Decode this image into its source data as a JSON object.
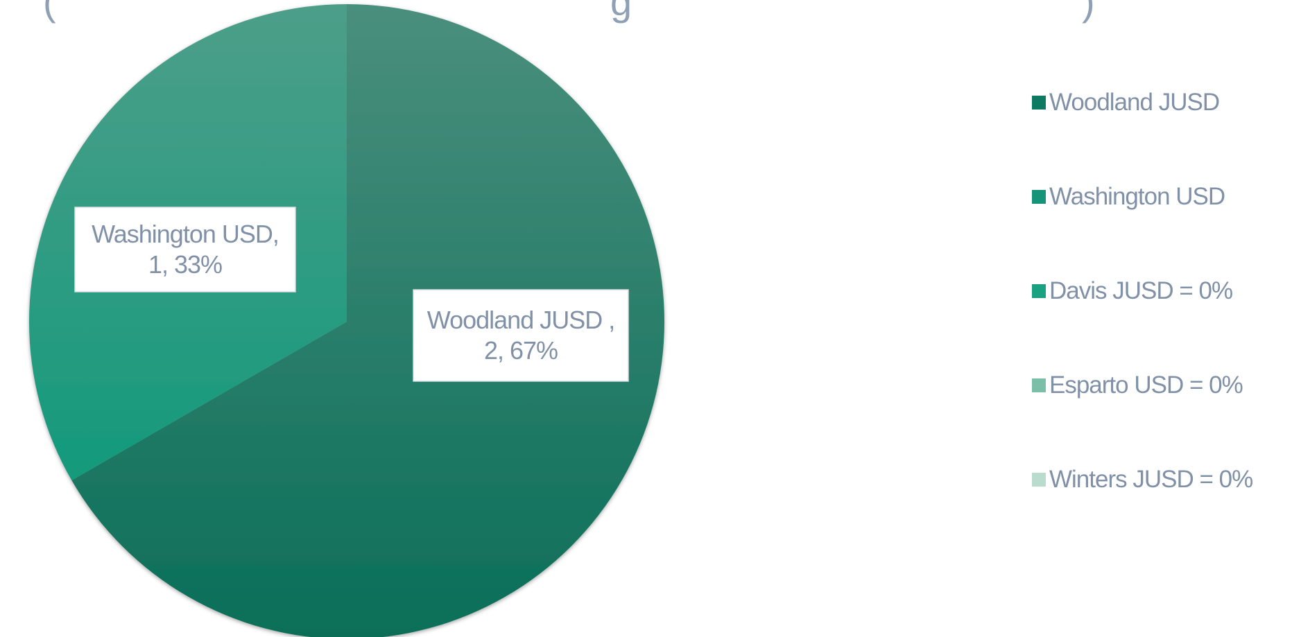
{
  "chart_data": {
    "type": "pie",
    "title": "",
    "slices": [
      {
        "name": "Woodland JUSD",
        "value": 2,
        "percent": 67,
        "label": "Woodland JUSD ,\n2, 67%"
      },
      {
        "name": "Washington USD",
        "value": 1,
        "percent": 33,
        "label": "Washington USD,\n1, 33%"
      },
      {
        "name": "Davis JUSD",
        "value": 0,
        "percent": 0,
        "label": ""
      },
      {
        "name": "Esparto USD",
        "value": 0,
        "percent": 0,
        "label": ""
      },
      {
        "name": "Winters JUSD",
        "value": 0,
        "percent": 0,
        "label": ""
      }
    ],
    "legend_placement": "right"
  },
  "legend": {
    "items": [
      {
        "label": "Woodland JUSD",
        "color": "#0f7a62"
      },
      {
        "label": "Washington USD",
        "color": "#169479"
      },
      {
        "label": "Davis JUSD = 0%",
        "color": "#1aa182"
      },
      {
        "label": "Esparto USD = 0%",
        "color": "#7bbfa8"
      },
      {
        "label": "Winters JUSD = 0%",
        "color": "#b9dccf"
      }
    ]
  },
  "colors": {
    "woodland_top": "#4a8f7d",
    "woodland_bottom": "#0a6e58",
    "washington_top": "#4d9e89",
    "washington_bottom": "#149a7c",
    "label_text": "#8090a6"
  }
}
